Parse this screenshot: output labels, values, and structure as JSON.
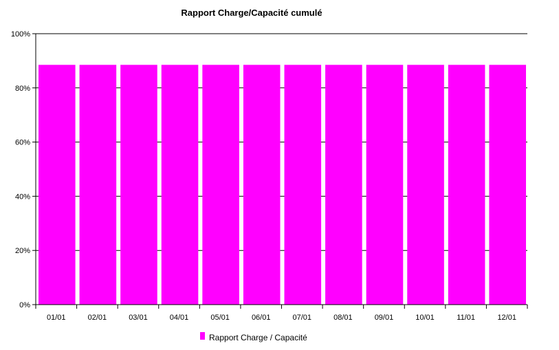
{
  "chart_data": {
    "type": "bar",
    "title": "Rapport Charge/Capacité cumulé",
    "xlabel": "",
    "ylabel": "",
    "categories": [
      "01/01",
      "02/01",
      "03/01",
      "04/01",
      "05/01",
      "06/01",
      "07/01",
      "08/01",
      "09/01",
      "10/01",
      "11/01",
      "12/01"
    ],
    "series": [
      {
        "name": "Rapport Charge / Capacité",
        "color": "#ff00ff",
        "values": [
          88.5,
          88.5,
          88.5,
          88.5,
          88.5,
          88.5,
          88.5,
          88.5,
          88.5,
          88.5,
          88.5,
          88.5
        ]
      }
    ],
    "ylim": [
      0,
      100
    ],
    "yticks": [
      "0%",
      "20%",
      "40%",
      "60%",
      "80%",
      "100%"
    ],
    "ytick_values": [
      0,
      20,
      40,
      60,
      80,
      100
    ],
    "grid": true,
    "legend_position": "bottom"
  }
}
